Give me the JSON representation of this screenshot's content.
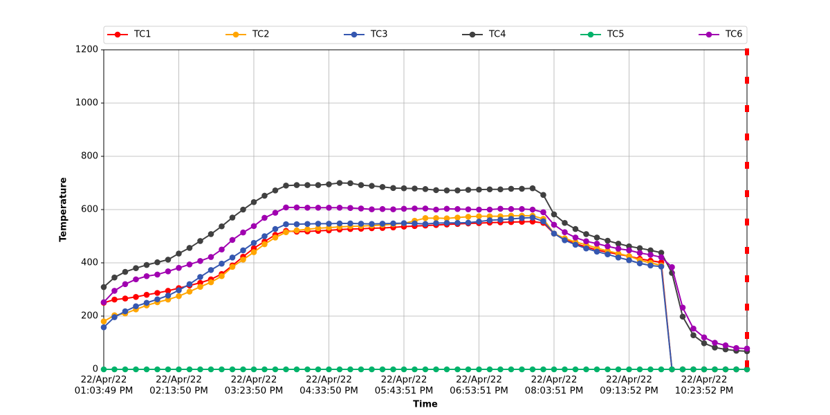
{
  "chart_data": {
    "type": "line",
    "x_label": "Time",
    "y_label": "Temperature",
    "categories": [
      "22/Apr/22\n01:03:49 PM",
      null,
      null,
      null,
      null,
      null,
      null,
      "22/Apr/22\n02:13:50 PM",
      null,
      null,
      null,
      null,
      null,
      null,
      "22/Apr/22\n03:23:50 PM",
      null,
      null,
      null,
      null,
      null,
      null,
      "22/Apr/22\n04:33:50 PM",
      null,
      null,
      null,
      null,
      null,
      null,
      "22/Apr/22\n05:43:51 PM",
      null,
      null,
      null,
      null,
      null,
      null,
      "22/Apr/22\n06:53:51 PM",
      null,
      null,
      null,
      null,
      null,
      null,
      "22/Apr/22\n08:03:51 PM",
      null,
      null,
      null,
      null,
      null,
      null,
      "22/Apr/22\n09:13:52 PM",
      null,
      null,
      null,
      null,
      null,
      null,
      "22/Apr/22\n10:23:52 PM",
      null,
      null,
      null,
      null
    ],
    "ylim": [
      0,
      1200
    ],
    "yticks": [
      0,
      200,
      400,
      600,
      800,
      1000,
      1200
    ],
    "grid": true,
    "series": [
      {
        "name": "TC1",
        "color": "#ff0000",
        "values": [
          250,
          262,
          266,
          272,
          280,
          287,
          295,
          305,
          315,
          325,
          338,
          358,
          390,
          423,
          455,
          480,
          505,
          520,
          517,
          518,
          520,
          522,
          525,
          527,
          528,
          530,
          531,
          533,
          536,
          538,
          540,
          542,
          544,
          546,
          548,
          549,
          551,
          552,
          553,
          554,
          555,
          550,
          510,
          488,
          472,
          460,
          448,
          440,
          432,
          425,
          415,
          408,
          402,
          0,
          0,
          0,
          0,
          0,
          0,
          0,
          0
        ]
      },
      {
        "name": "TC2",
        "color": "#ffa500",
        "values": [
          180,
          203,
          210,
          225,
          240,
          252,
          262,
          275,
          292,
          310,
          327,
          350,
          385,
          412,
          440,
          470,
          495,
          515,
          522,
          526,
          530,
          532,
          535,
          537,
          538,
          540,
          542,
          545,
          548,
          558,
          568,
          568,
          567,
          570,
          573,
          575,
          575,
          575,
          577,
          577,
          577,
          565,
          510,
          492,
          478,
          468,
          455,
          445,
          435,
          425,
          410,
          400,
          390,
          0,
          0,
          0,
          0,
          0,
          0,
          0,
          0
        ]
      },
      {
        "name": "TC3",
        "color": "#3557b0",
        "values": [
          158,
          196,
          218,
          237,
          250,
          263,
          277,
          297,
          320,
          347,
          373,
          397,
          420,
          447,
          475,
          500,
          527,
          545,
          545,
          546,
          547,
          547,
          548,
          548,
          547,
          546,
          547,
          548,
          549,
          548,
          546,
          549,
          550,
          550,
          551,
          555,
          560,
          562,
          565,
          568,
          570,
          556,
          510,
          485,
          468,
          454,
          442,
          432,
          420,
          410,
          398,
          390,
          386,
          0,
          0,
          0,
          0,
          0,
          0,
          0,
          0
        ]
      },
      {
        "name": "TC4",
        "color": "#404040",
        "values": [
          309,
          345,
          366,
          380,
          392,
          402,
          412,
          435,
          456,
          482,
          508,
          537,
          570,
          600,
          628,
          652,
          672,
          690,
          692,
          692,
          692,
          695,
          700,
          699,
          692,
          689,
          685,
          681,
          680,
          679,
          677,
          673,
          672,
          672,
          674,
          675,
          676,
          676,
          678,
          678,
          680,
          655,
          582,
          550,
          527,
          508,
          495,
          483,
          472,
          462,
          455,
          447,
          438,
          362,
          198,
          128,
          98,
          82,
          75,
          70,
          68
        ]
      },
      {
        "name": "TC5",
        "color": "#00b26a",
        "values": [
          0,
          0,
          0,
          0,
          0,
          0,
          0,
          0,
          0,
          0,
          0,
          0,
          0,
          0,
          0,
          0,
          0,
          0,
          0,
          0,
          0,
          0,
          0,
          0,
          0,
          0,
          0,
          0,
          0,
          0,
          0,
          0,
          0,
          0,
          0,
          0,
          0,
          0,
          0,
          0,
          0,
          0,
          0,
          0,
          0,
          0,
          0,
          0,
          0,
          0,
          0,
          0,
          0,
          0,
          0,
          0,
          0,
          0,
          0,
          0,
          0
        ]
      },
      {
        "name": "TC6",
        "color": "#a000b0",
        "values": [
          252,
          295,
          320,
          338,
          350,
          356,
          368,
          381,
          394,
          407,
          422,
          450,
          486,
          514,
          538,
          569,
          588,
          608,
          608,
          607,
          607,
          607,
          607,
          606,
          604,
          601,
          602,
          601,
          603,
          604,
          604,
          600,
          603,
          602,
          601,
          600,
          600,
          603,
          602,
          602,
          600,
          590,
          543,
          515,
          495,
          481,
          472,
          462,
          453,
          447,
          437,
          430,
          421,
          384,
          232,
          153,
          120,
          100,
          90,
          80,
          78
        ]
      }
    ]
  }
}
